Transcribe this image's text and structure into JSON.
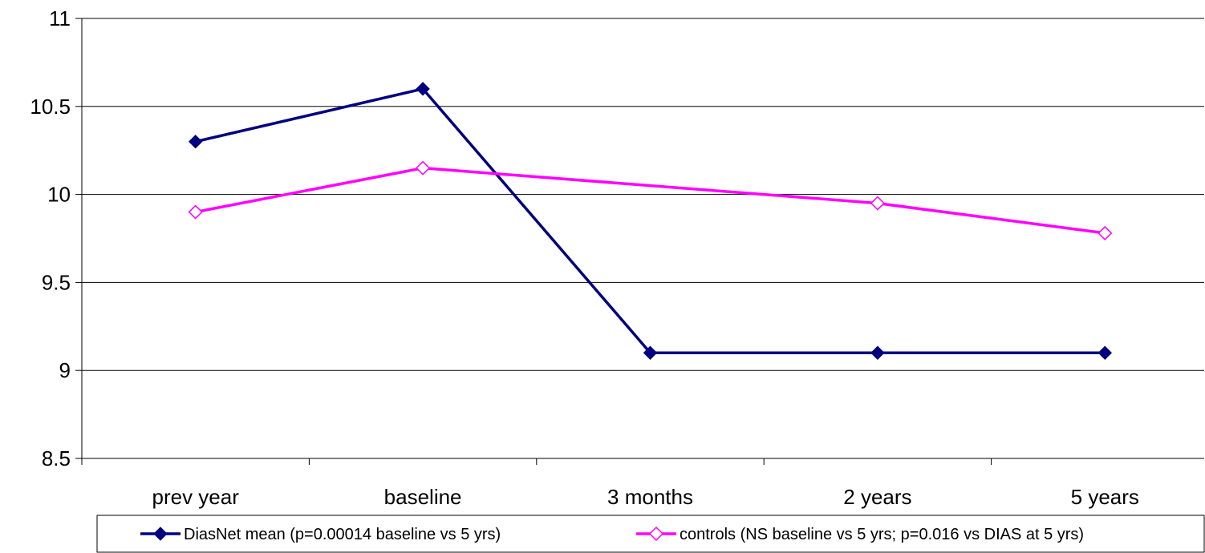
{
  "chart_data": {
    "type": "line",
    "title": "",
    "xlabel": "",
    "ylabel": "",
    "categories": [
      "prev year",
      "baseline",
      "3 months",
      "2 years",
      "5 years"
    ],
    "ylim": [
      8.5,
      11
    ],
    "yticks": [
      8.5,
      9,
      9.5,
      10,
      10.5,
      11
    ],
    "ytick_labels": [
      "8.5",
      "9",
      "9.5",
      "10",
      "10.5",
      "11"
    ],
    "grid": true,
    "legend_position": "bottom",
    "series": [
      {
        "name": "DiasNet mean (p=0.00014 baseline vs 5 yrs)",
        "values": [
          10.3,
          10.6,
          9.1,
          9.1,
          9.1
        ],
        "color": "#000080",
        "marker": "filled-diamond"
      },
      {
        "name": "controls (NS baseline vs 5 yrs; p=0.016 vs DIAS at 5 yrs)",
        "values": [
          9.9,
          10.15,
          null,
          9.95,
          9.78
        ],
        "color": "#ff00ff",
        "marker": "open-diamond"
      }
    ]
  }
}
